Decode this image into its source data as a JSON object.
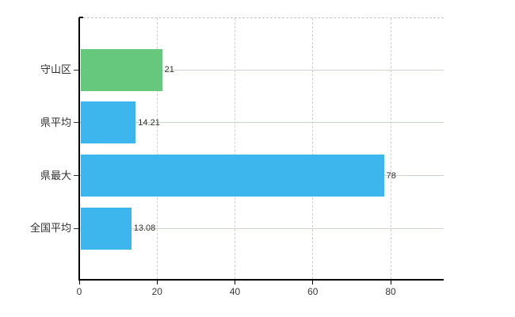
{
  "chart_data": {
    "type": "bar",
    "orientation": "horizontal",
    "title": "",
    "categories": [
      "守山区",
      "県平均",
      "県最大",
      "全国平均"
    ],
    "values": [
      21,
      14.21,
      78,
      13.08
    ],
    "value_labels": [
      "21",
      "14.21",
      "78",
      "13.08"
    ],
    "bar_colors": [
      "#65c87d",
      "#3db6ee",
      "#3db6ee",
      "#3db6ee"
    ],
    "x_ticks": [
      "0",
      "20",
      "40",
      "60",
      "80"
    ],
    "x_tick_values": [
      0,
      20,
      40,
      60,
      80
    ],
    "xlim": [
      0,
      93.6
    ],
    "grid": "on",
    "legend": "none",
    "colors": {
      "green_bar": "#65c87d",
      "blue_bar": "#3db6ee",
      "axis": "#000000",
      "h_gridline": "#ccd4cc",
      "v_gridline": "#d0d0d0",
      "top_border": "#c4c4ca",
      "label_text": "#303030",
      "tick_text": "#3a3a3a",
      "background": "#ffffff"
    }
  }
}
